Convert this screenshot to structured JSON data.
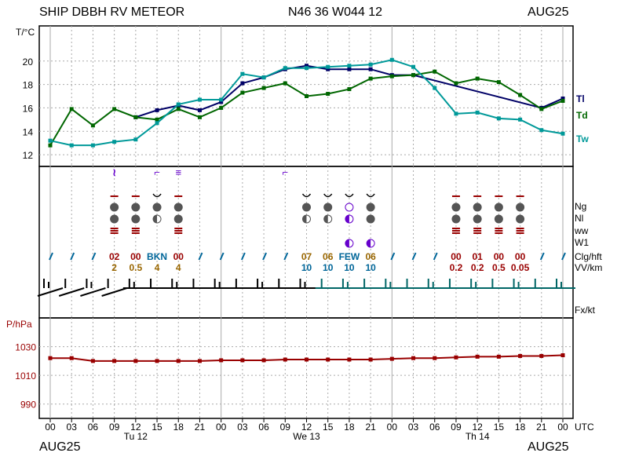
{
  "header": {
    "station": "SHIP DBBH RV METEOR",
    "position": "N46 36 W044 12",
    "date": "AUG25"
  },
  "footer": {
    "left_date": "AUG25",
    "right_date": "AUG25"
  },
  "chart_data": [
    {
      "type": "line",
      "ylabel": "T/°C",
      "ylim": [
        11,
        23
      ],
      "yticks": [
        12,
        14,
        16,
        18,
        20
      ],
      "x_hours": [
        0,
        3,
        6,
        9,
        12,
        15,
        18,
        21,
        24,
        27,
        30,
        33,
        36,
        39,
        42,
        45,
        48,
        51,
        54,
        57,
        60,
        63,
        66,
        69,
        72
      ],
      "series": [
        {
          "name": "Tl",
          "color": "#000066",
          "points": [
            [
              12,
              15.2
            ],
            [
              15,
              15.8
            ],
            [
              18,
              16.2
            ],
            [
              21,
              15.8
            ],
            [
              24,
              16.5
            ],
            [
              27,
              18.1
            ],
            [
              30,
              18.6
            ],
            [
              33,
              19.3
            ],
            [
              36,
              19.6
            ],
            [
              39,
              19.3
            ],
            [
              42,
              19.3
            ],
            [
              45,
              19.3
            ],
            [
              48,
              18.8
            ],
            [
              51,
              18.8
            ],
            [
              69,
              16.0
            ],
            [
              72,
              16.8
            ]
          ]
        },
        {
          "name": "Td",
          "color": "#006600",
          "points": [
            [
              0,
              12.8
            ],
            [
              3,
              15.9
            ],
            [
              6,
              14.5
            ],
            [
              9,
              15.9
            ],
            [
              12,
              15.2
            ],
            [
              15,
              15.0
            ],
            [
              18,
              15.9
            ],
            [
              21,
              15.2
            ],
            [
              24,
              16.0
            ],
            [
              27,
              17.3
            ],
            [
              30,
              17.7
            ],
            [
              33,
              18.1
            ],
            [
              36,
              17.0
            ],
            [
              39,
              17.2
            ],
            [
              42,
              17.6
            ],
            [
              45,
              18.5
            ],
            [
              48,
              18.7
            ],
            [
              51,
              18.8
            ],
            [
              54,
              19.1
            ],
            [
              57,
              18.1
            ],
            [
              60,
              18.5
            ],
            [
              63,
              18.2
            ],
            [
              66,
              17.1
            ],
            [
              69,
              15.9
            ],
            [
              72,
              16.6
            ]
          ]
        },
        {
          "name": "Tw",
          "color": "#009999",
          "points": [
            [
              0,
              13.2
            ],
            [
              3,
              12.8
            ],
            [
              6,
              12.8
            ],
            [
              9,
              13.1
            ],
            [
              12,
              13.3
            ],
            [
              15,
              14.7
            ],
            [
              18,
              16.3
            ],
            [
              21,
              16.7
            ],
            [
              24,
              16.7
            ],
            [
              27,
              18.9
            ],
            [
              30,
              18.6
            ],
            [
              33,
              19.4
            ],
            [
              36,
              19.4
            ],
            [
              39,
              19.5
            ],
            [
              42,
              19.6
            ],
            [
              45,
              19.7
            ],
            [
              48,
              20.1
            ],
            [
              51,
              19.5
            ],
            [
              54,
              17.7
            ],
            [
              57,
              15.5
            ],
            [
              60,
              15.6
            ],
            [
              63,
              15.1
            ],
            [
              66,
              15.0
            ],
            [
              69,
              14.1
            ],
            [
              72,
              13.8
            ]
          ]
        }
      ]
    },
    {
      "type": "table",
      "row_labels": [
        "Ng",
        "Nl",
        "ww",
        "W1",
        "Clg/hft",
        "VV/km",
        "Fx/kt"
      ],
      "cloud_height": [
        {
          "x": 9,
          "text": "02"
        },
        {
          "x": 12,
          "text": "00"
        },
        {
          "x": 15,
          "text": "BKN"
        },
        {
          "x": 18,
          "text": "00"
        },
        {
          "x": 36,
          "text": "07"
        },
        {
          "x": 39,
          "text": "06"
        },
        {
          "x": 42,
          "text": "FEW"
        },
        {
          "x": 45,
          "text": "06"
        },
        {
          "x": 57,
          "text": "00"
        },
        {
          "x": 60,
          "text": "01"
        },
        {
          "x": 63,
          "text": "00"
        },
        {
          "x": 66,
          "text": "00"
        }
      ],
      "visibility": [
        {
          "x": 9,
          "text": "2"
        },
        {
          "x": 12,
          "text": "0.5"
        },
        {
          "x": 15,
          "text": "4"
        },
        {
          "x": 18,
          "text": "4"
        },
        {
          "x": 36,
          "text": "10"
        },
        {
          "x": 39,
          "text": "10"
        },
        {
          "x": 42,
          "text": "10"
        },
        {
          "x": 45,
          "text": "10"
        },
        {
          "x": 57,
          "text": "0.2"
        },
        {
          "x": 60,
          "text": "0.2"
        },
        {
          "x": 63,
          "text": "0.5"
        },
        {
          "x": 66,
          "text": "0.05"
        }
      ],
      "low_cloud_slashes_x": [
        0,
        3,
        6,
        21,
        24,
        27,
        30,
        33,
        48,
        51,
        54
      ],
      "wind_barb_x": [
        0,
        3,
        6,
        9,
        12,
        15,
        18,
        21,
        24,
        27,
        30,
        33,
        36,
        39,
        42,
        45,
        48,
        51,
        54,
        57,
        60,
        63,
        66,
        69,
        72
      ]
    },
    {
      "type": "line",
      "ylabel": "P/hPa",
      "ylim": [
        980,
        1050
      ],
      "yticks": [
        990,
        1010,
        1030
      ],
      "series": [
        {
          "name": "",
          "color": "#990000",
          "points": [
            [
              0,
              1022
            ],
            [
              3,
              1022
            ],
            [
              6,
              1020
            ],
            [
              9,
              1020
            ],
            [
              12,
              1020
            ],
            [
              15,
              1020
            ],
            [
              18,
              1020
            ],
            [
              21,
              1020
            ],
            [
              24,
              1020.5
            ],
            [
              27,
              1020.5
            ],
            [
              30,
              1020.5
            ],
            [
              33,
              1021
            ],
            [
              36,
              1021
            ],
            [
              39,
              1021
            ],
            [
              42,
              1021
            ],
            [
              45,
              1021
            ],
            [
              48,
              1021.5
            ],
            [
              51,
              1022
            ],
            [
              54,
              1022
            ],
            [
              57,
              1022.5
            ],
            [
              60,
              1023
            ],
            [
              63,
              1023
            ],
            [
              66,
              1023.5
            ],
            [
              69,
              1023.5
            ],
            [
              72,
              1024
            ]
          ]
        }
      ]
    }
  ],
  "x_axis": {
    "hour_labels": [
      "00",
      "03",
      "06",
      "09",
      "12",
      "15",
      "18",
      "21",
      "00",
      "03",
      "06",
      "09",
      "12",
      "15",
      "18",
      "21",
      "00",
      "03",
      "06",
      "09",
      "12",
      "15",
      "18",
      "21",
      "00"
    ],
    "day_labels": [
      {
        "x": 12,
        "text": "Tu 12"
      },
      {
        "x": 36,
        "text": "We 13"
      },
      {
        "x": 60,
        "text": "Th 14"
      }
    ],
    "unit": "UTC"
  },
  "colors": {
    "tl": "#000066",
    "td": "#006600",
    "tw": "#009999",
    "pressure": "#990000",
    "wx": "#6600cc",
    "wind": "#000000",
    "wind_alt": "#006666"
  }
}
